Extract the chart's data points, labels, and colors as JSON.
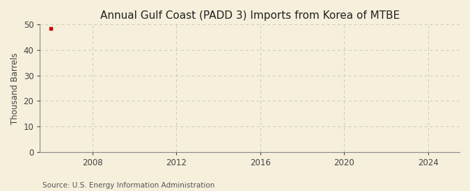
{
  "title": "Annual Gulf Coast (PADD 3) Imports from Korea of MTBE",
  "ylabel": "Thousand Barrels",
  "source": "Source: U.S. Energy Information Administration",
  "background_color": "#f5efdc",
  "plot_background_color": "#f5efdc",
  "xlim": [
    2005.5,
    2025.5
  ],
  "ylim": [
    0,
    50
  ],
  "yticks": [
    0,
    10,
    20,
    30,
    40,
    50
  ],
  "xticks": [
    2008,
    2012,
    2016,
    2020,
    2024
  ],
  "data_x": [
    2006
  ],
  "data_y": [
    48.5
  ],
  "point_color": "#cc0000",
  "grid_color": "#ccccaa",
  "axis_color": "#888888",
  "title_fontsize": 11,
  "label_fontsize": 8.5,
  "tick_fontsize": 8.5,
  "source_fontsize": 7.5
}
